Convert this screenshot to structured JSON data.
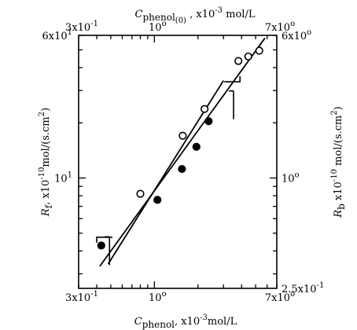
{
  "chart_data": {
    "type": "scatter",
    "x_scale": "log",
    "y_scale": "log",
    "grid": false,
    "legend": "none",
    "axes": {
      "bottom": {
        "label": "C_phenol, x10^-3 mol/L",
        "label_parts": {
          "var": "C",
          "sub": "phenol",
          "unit": ", x10",
          "exp": "-3",
          "tail": "mol/L"
        },
        "range": [
          0.3,
          7.0
        ],
        "ticks": [
          {
            "value": 0.3,
            "text": "3x10",
            "exp": "-1"
          },
          {
            "value": 1.0,
            "text": "10",
            "exp": "o"
          },
          {
            "value": 7.0,
            "text": "7x10",
            "exp": "o"
          }
        ]
      },
      "top": {
        "label": "C_phenol(0), x10^-3 mol/L",
        "label_parts": {
          "var": "C",
          "sub": "phenol",
          "subsub": "(0)",
          "unit": " , x10",
          "exp": "-3",
          "tail": " mol/L"
        },
        "range": [
          0.3,
          7.0
        ],
        "ticks": [
          {
            "value": 0.3,
            "text": "3x10",
            "exp": "-1"
          },
          {
            "value": 1.0,
            "text": "10",
            "exp": "o"
          },
          {
            "value": 7.0,
            "text": "7x10",
            "exp": "o"
          }
        ]
      },
      "left": {
        "label": "R_f, x10^-10 mol/(s.cm^2)",
        "label_parts": {
          "var": "R",
          "sub": "f",
          "unit": ", x10",
          "exp": "-10",
          "tail": "mol/(s.cm",
          "exp2": "2",
          "close": ")"
        },
        "range": [
          2.5,
          60
        ],
        "ticks": [
          {
            "value": 10,
            "text": "10",
            "exp": "1"
          },
          {
            "value": 60,
            "text": "6x10",
            "exp": "1"
          }
        ]
      },
      "right": {
        "label": "R_b, x10^-10 mol/(s.cm^2)",
        "label_parts": {
          "var": "R",
          "sub": "b",
          "unit": " x10",
          "exp": "-10",
          "tail": " mol/(s.cm",
          "exp2": "2",
          "close": ")"
        },
        "range": [
          0.25,
          6.0
        ],
        "ticks": [
          {
            "value": 0.25,
            "text": "2.5x10",
            "exp": "-1"
          },
          {
            "value": 1.0,
            "text": "10",
            "exp": "o"
          },
          {
            "value": 6.0,
            "text": "6x10",
            "exp": "o"
          }
        ]
      }
    },
    "series": [
      {
        "marker": "open-circle",
        "axes": [
          "top",
          "right"
        ],
        "points": [
          {
            "x": 0.8,
            "y": 0.82
          },
          {
            "x": 1.57,
            "y": 1.7
          },
          {
            "x": 2.22,
            "y": 2.38
          },
          {
            "x": 3.8,
            "y": 4.35
          },
          {
            "x": 4.45,
            "y": 4.6
          },
          {
            "x": 5.3,
            "y": 4.95
          }
        ]
      },
      {
        "marker": "filled-circle",
        "axes": [
          "bottom",
          "left"
        ],
        "points": [
          {
            "x": 0.43,
            "y": 4.28
          },
          {
            "x": 1.05,
            "y": 7.6
          },
          {
            "x": 1.55,
            "y": 11.2
          },
          {
            "x": 1.95,
            "y": 14.8
          },
          {
            "x": 2.37,
            "y": 20.4
          }
        ]
      }
    ],
    "fit_lines": [
      {
        "axes": [
          "top",
          "right"
        ],
        "from": {
          "x": 0.42,
          "y": 0.33
        },
        "to": {
          "x": 5.8,
          "y": 5.8
        }
      },
      {
        "axes": [
          "bottom",
          "left"
        ],
        "from": {
          "x": 0.48,
          "y": 3.4
        },
        "to": {
          "x": 3.0,
          "y": 34.0
        }
      }
    ],
    "arrows": [
      {
        "shape": "left",
        "axes": [
          "bottom",
          "left"
        ],
        "at": {
          "x": 0.4,
          "y": 4.75
        }
      },
      {
        "shape": "down",
        "axes": [
          "bottom",
          "left"
        ],
        "at": {
          "x": 0.49,
          "y": 4.0
        }
      },
      {
        "shape": "down",
        "axes": [
          "top",
          "right"
        ],
        "at": {
          "x": 3.52,
          "y": 2.5
        }
      },
      {
        "shape": "right",
        "axes": [
          "top",
          "right"
        ],
        "at": {
          "x": 3.9,
          "y": 3.35
        }
      }
    ]
  }
}
